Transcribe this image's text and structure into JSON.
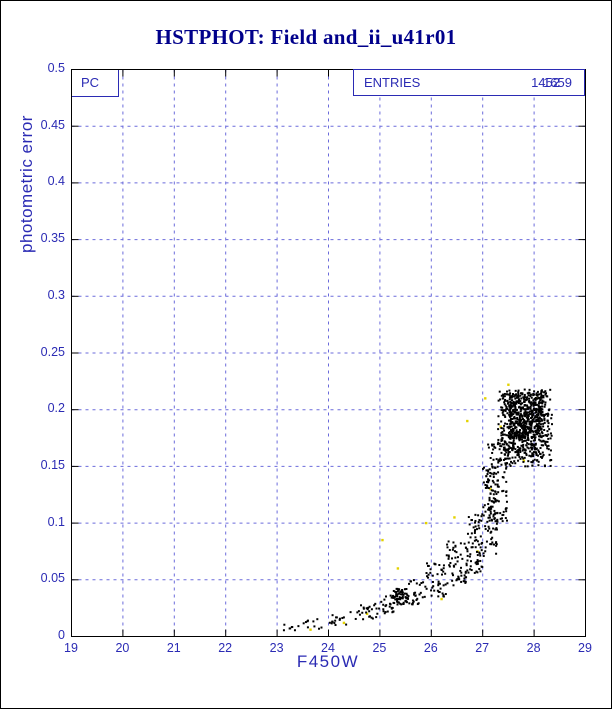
{
  "title": "HSTPHOT: Field and_ii_u41r01",
  "pc_label": "PC",
  "stat_box": {
    "label": "ENTRIES",
    "values": [
      "1452",
      "1659"
    ]
  },
  "chart_data": {
    "type": "scatter",
    "title": "HSTPHOT: Field and_ii_u41r01",
    "xlabel": "F450W",
    "ylabel": "photometric error",
    "xlim": [
      19,
      29
    ],
    "ylim": [
      0,
      0.5
    ],
    "xticks": [
      19,
      20,
      21,
      22,
      23,
      24,
      25,
      26,
      27,
      28,
      29
    ],
    "xtick_labels": [
      "19",
      "20",
      "21",
      "22",
      "23",
      "24",
      "25",
      "26",
      "27",
      "28",
      "29"
    ],
    "yticks": [
      0,
      0.05,
      0.1,
      0.15,
      0.2,
      0.25,
      0.3,
      0.35,
      0.4,
      0.45,
      0.5
    ],
    "ytick_labels": [
      "0",
      "0.05",
      "0.1",
      "0.15",
      "0.2",
      "0.25",
      "0.3",
      "0.35",
      "0.4",
      "0.45",
      "0.5"
    ],
    "grid": {
      "show": true,
      "style": "dashed",
      "color": "#6b6bdb"
    },
    "legend": "none",
    "entries": 1452,
    "colors": {
      "accent": "#2b2bb4",
      "title": "#00008b",
      "frame": "#000000",
      "points_primary": "#000000",
      "points_secondary": "#e3d200"
    },
    "series": [
      {
        "name": "primary-black-points",
        "marker": "dot",
        "color": "#000000",
        "seed": 1337,
        "clusters": [
          [
            23.05,
            23.5,
            0.004,
            0.012,
            8
          ],
          [
            23.5,
            24.0,
            0.006,
            0.016,
            10
          ],
          [
            24.0,
            24.5,
            0.01,
            0.022,
            16
          ],
          [
            24.5,
            25.0,
            0.015,
            0.03,
            26
          ],
          [
            25.0,
            25.3,
            0.02,
            0.038,
            24
          ],
          [
            25.25,
            25.55,
            0.028,
            0.042,
            70
          ],
          [
            25.5,
            25.9,
            0.028,
            0.05,
            30
          ],
          [
            25.9,
            26.3,
            0.035,
            0.065,
            45
          ],
          [
            26.3,
            26.7,
            0.045,
            0.085,
            60
          ],
          [
            26.7,
            27.0,
            0.055,
            0.11,
            70
          ],
          [
            27.0,
            27.3,
            0.07,
            0.15,
            90
          ],
          [
            27.1,
            27.5,
            0.1,
            0.17,
            90
          ],
          [
            27.3,
            28.35,
            0.15,
            0.218,
            313
          ],
          [
            27.35,
            28.3,
            0.16,
            0.215,
            300
          ],
          [
            27.5,
            28.15,
            0.175,
            0.215,
            300
          ]
        ]
      },
      {
        "name": "secondary-yellow-points",
        "marker": "dot",
        "color": "#e3d200",
        "points": [
          [
            23.65,
            0.006
          ],
          [
            24.3,
            0.012
          ],
          [
            24.75,
            0.02
          ],
          [
            25.05,
            0.085
          ],
          [
            25.35,
            0.06
          ],
          [
            25.9,
            0.1
          ],
          [
            26.2,
            0.033
          ],
          [
            26.45,
            0.105
          ],
          [
            26.7,
            0.19
          ],
          [
            26.9,
            0.075
          ],
          [
            27.05,
            0.21
          ],
          [
            27.15,
            0.13
          ],
          [
            27.5,
            0.222
          ],
          [
            27.8,
            0.155
          ],
          [
            28.05,
            0.21
          ],
          [
            27.35,
            0.185
          ]
        ]
      }
    ]
  }
}
